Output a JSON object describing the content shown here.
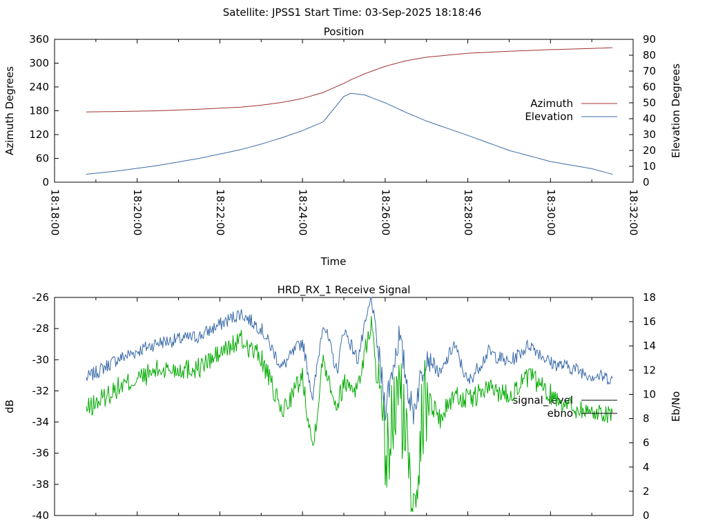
{
  "page_title": "Satellite: JPSS1    Start Time: 03-Sep-2025 18:18:46",
  "colors": {
    "azimuth": "#a03030",
    "elevation": "#3a6aa8",
    "signal_level": "#3a6aa8",
    "ebno": "#00aa00",
    "axis": "#000000"
  },
  "chart_data": [
    {
      "type": "line",
      "title": "Position",
      "xlabel": "Time",
      "ylabel": "Azimuth Degrees",
      "y2label": "Elevation Degrees",
      "xlim": [
        "18:18:00",
        "18:32:00"
      ],
      "ylim": [
        0,
        360
      ],
      "y2lim": [
        0,
        90
      ],
      "x_ticks": [
        "18:18:00",
        "18:20:00",
        "18:22:00",
        "18:24:00",
        "18:26:00",
        "18:28:00",
        "18:30:00",
        "18:32:00"
      ],
      "y_ticks": [
        0,
        60,
        120,
        180,
        240,
        300,
        360
      ],
      "y2_ticks": [
        0,
        10,
        20,
        30,
        40,
        50,
        60,
        70,
        80,
        90
      ],
      "grid": false,
      "legend": "right",
      "x": [
        "18:18:46",
        "18:19:30",
        "18:20:30",
        "18:21:30",
        "18:22:30",
        "18:23:00",
        "18:23:30",
        "18:24:00",
        "18:24:30",
        "18:25:00",
        "18:25:10",
        "18:25:30",
        "18:26:00",
        "18:26:30",
        "18:27:00",
        "18:28:00",
        "18:29:00",
        "18:30:00",
        "18:31:00",
        "18:31:30"
      ],
      "series": [
        {
          "name": "Azimuth",
          "axis": "y",
          "values": [
            177,
            178,
            180,
            184,
            189,
            194,
            201,
            211,
            226,
            249,
            258,
            273,
            292,
            306,
            315,
            325,
            330,
            334,
            337,
            339
          ]
        },
        {
          "name": "Elevation",
          "axis": "y2",
          "values": [
            5,
            7,
            10.5,
            15,
            20.5,
            24,
            28,
            32.5,
            38,
            54,
            56,
            55,
            50,
            44,
            38.5,
            29.5,
            20,
            13,
            8.5,
            5
          ]
        }
      ]
    },
    {
      "type": "line",
      "title": "HRD_RX_1 Receive Signal",
      "ylabel": "dB",
      "y2label": "Eb/No",
      "xlim": [
        "18:18:00",
        "18:32:00"
      ],
      "ylim": [
        -40,
        -26
      ],
      "y2lim": [
        0,
        18
      ],
      "y_ticks": [
        -40,
        -38,
        -36,
        -34,
        -32,
        -30,
        -28,
        -26
      ],
      "y2_ticks": [
        0,
        2,
        4,
        6,
        8,
        10,
        12,
        14,
        16,
        18
      ],
      "grid": false,
      "legend": "right",
      "x": [
        "18:18:46",
        "18:19:30",
        "18:20:30",
        "18:21:30",
        "18:22:30",
        "18:23:00",
        "18:23:30",
        "18:24:00",
        "18:24:15",
        "18:24:30",
        "18:24:50",
        "18:25:00",
        "18:25:20",
        "18:25:40",
        "18:26:00",
        "18:26:20",
        "18:26:40",
        "18:27:00",
        "18:27:20",
        "18:27:40",
        "18:28:00",
        "18:28:30",
        "18:29:00",
        "18:29:30",
        "18:30:00",
        "18:30:30",
        "18:31:00",
        "18:31:30"
      ],
      "series": [
        {
          "name": "signal_level",
          "axis": "y",
          "values": [
            -31.2,
            -30.0,
            -28.9,
            -28.5,
            -27.0,
            -28.0,
            -30.5,
            -28.8,
            -32.5,
            -27.5,
            -30.8,
            -28.0,
            -30.0,
            -26.0,
            -33.0,
            -28.5,
            -33.5,
            -29.5,
            -31.0,
            -29.0,
            -31.5,
            -29.5,
            -30.2,
            -29.0,
            -30.2,
            -30.5,
            -31.0,
            -31.2
          ]
        },
        {
          "name": "ebno",
          "axis": "y2",
          "values": [
            8.7,
            10.5,
            12.0,
            12.2,
            14.5,
            13.0,
            8.5,
            11.5,
            5.5,
            13.0,
            9.0,
            11.0,
            10.5,
            16.0,
            4.0,
            10.5,
            2.0,
            10.0,
            8.0,
            10.0,
            9.5,
            10.5,
            10.0,
            11.5,
            10.0,
            9.0,
            8.5,
            8.5
          ]
        }
      ]
    }
  ]
}
